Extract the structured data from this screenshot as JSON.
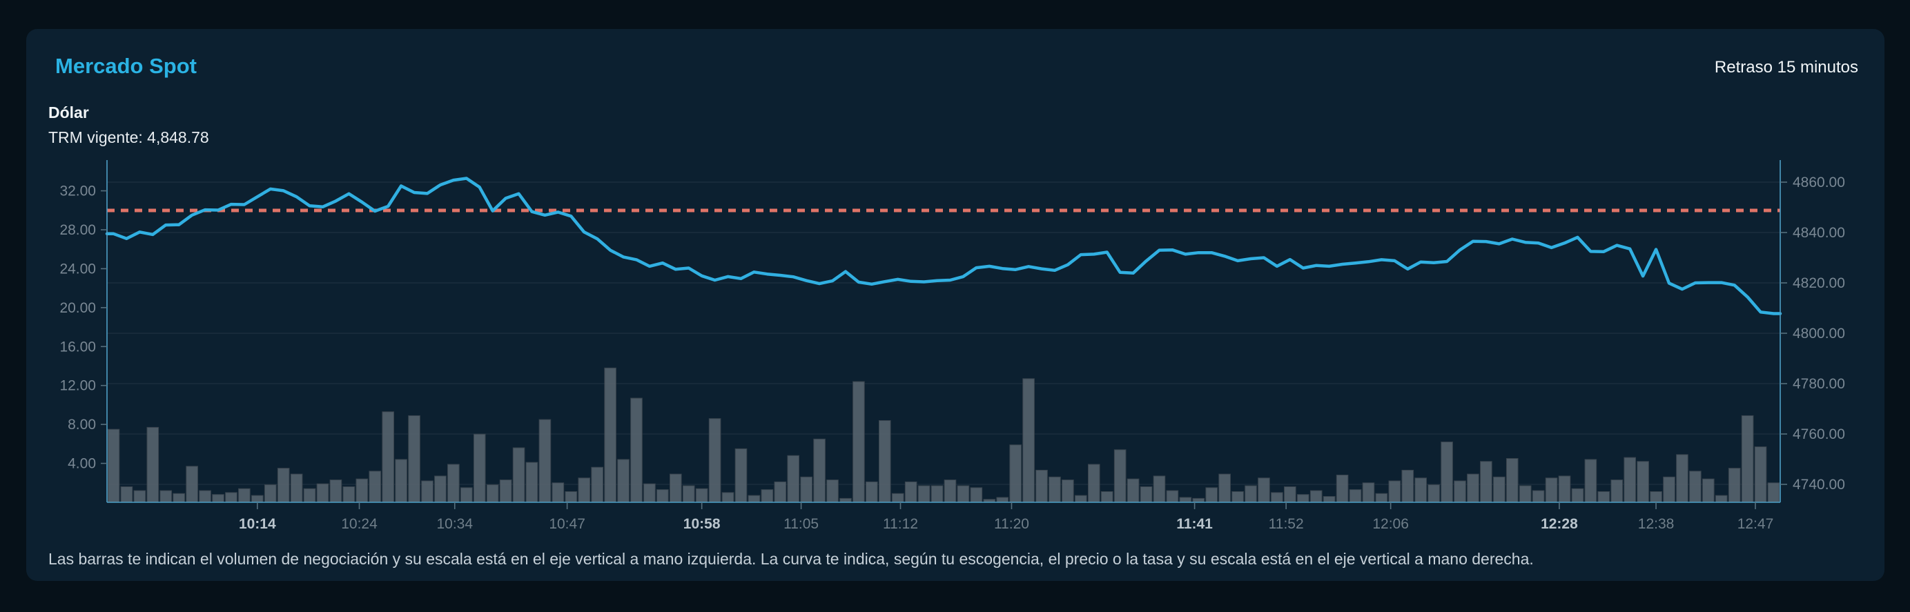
{
  "header": {
    "title": "Mercado Spot",
    "delay_note": "Retraso 15 minutos",
    "instrument": "Dólar",
    "trm_label": "TRM vigente: 4,848.78"
  },
  "footer": {
    "note": "Las barras te indican el volumen de negociación y su escala está en el eje vertical a mano izquierda. La curva te indica, según tu escogencia, el precio o la tasa y su escala está en el eje vertical a mano derecha."
  },
  "colors": {
    "page_bg": "#061119",
    "card_bg": "#0c2030",
    "accent_title": "#2bb3e4",
    "line": "#31b0e2",
    "trm_dotted": "#e07468",
    "bars_fill": "#55626d",
    "bars_stroke": "#39444e",
    "axis_line": "#4d9fc7",
    "gridline": "#1b2e3d"
  },
  "chart_data": {
    "type": "line",
    "subtype": "composite line+bar, dual y-axis",
    "title": "Mercado Spot - Dólar",
    "trm_reference": 4848.78,
    "left_axis": {
      "role": "volumen (barras)",
      "tick_values": [
        4,
        8,
        12,
        16,
        20,
        24,
        28,
        32
      ],
      "tick_labels": [
        "4.00",
        "8.00",
        "12.00",
        "16.00",
        "20.00",
        "24.00",
        "28.00",
        "32.00"
      ],
      "range": [
        0,
        35
      ]
    },
    "right_axis": {
      "role": "precio / tasa (curva)",
      "tick_values": [
        4740,
        4760,
        4780,
        4800,
        4820,
        4840,
        4860
      ],
      "tick_labels": [
        "4740.00",
        "4760.00",
        "4780.00",
        "4800.00",
        "4820.00",
        "4840.00",
        "4860.00"
      ],
      "range": [
        4733,
        4868
      ]
    },
    "x_ticks": [
      {
        "label": "10:14",
        "i": 11.0,
        "bold": true
      },
      {
        "label": "10:24",
        "i": 18.8,
        "bold": false
      },
      {
        "label": "10:34",
        "i": 26.1,
        "bold": false
      },
      {
        "label": "10:47",
        "i": 34.7,
        "bold": false
      },
      {
        "label": "10:58",
        "i": 45.0,
        "bold": true
      },
      {
        "label": "11:05",
        "i": 52.6,
        "bold": false
      },
      {
        "label": "11:12",
        "i": 60.2,
        "bold": false
      },
      {
        "label": "11:20",
        "i": 68.7,
        "bold": false
      },
      {
        "label": "11:41",
        "i": 82.7,
        "bold": true
      },
      {
        "label": "11:52",
        "i": 89.7,
        "bold": false
      },
      {
        "label": "12:06",
        "i": 97.7,
        "bold": false
      },
      {
        "label": "12:28",
        "i": 110.6,
        "bold": true
      },
      {
        "label": "12:38",
        "i": 118.0,
        "bold": false
      },
      {
        "label": "12:47",
        "i": 125.6,
        "bold": false
      }
    ],
    "series": [
      {
        "name": "precio",
        "type": "line",
        "values": [
          4839.5,
          4837.6,
          4840.2,
          4839.2,
          4843.0,
          4843.1,
          4846.9,
          4849.0,
          4848.9,
          4851.2,
          4851.1,
          4854.2,
          4857.3,
          4856.6,
          4854.2,
          4850.6,
          4850.2,
          4852.5,
          4855.4,
          4852.1,
          4848.5,
          4850.4,
          4858.5,
          4855.9,
          4855.5,
          4858.9,
          4860.8,
          4861.5,
          4858.0,
          4848.6,
          4853.6,
          4855.4,
          4848.3,
          4846.9,
          4848.1,
          4846.5,
          4840.2,
          4837.5,
          4833.0,
          4830.3,
          4829.2,
          4826.6,
          4827.9,
          4825.4,
          4825.9,
          4822.8,
          4821.1,
          4822.5,
          4821.7,
          4824.3,
          4823.5,
          4823.0,
          4822.4,
          4820.9,
          4819.7,
          4820.8,
          4824.5,
          4820.3,
          4819.5,
          4820.5,
          4821.4,
          4820.6,
          4820.4,
          4820.9,
          4821.1,
          4822.5,
          4826.0,
          4826.6,
          4825.7,
          4825.3,
          4826.5,
          4825.6,
          4825.0,
          4827.2,
          4831.2,
          4831.4,
          4832.2,
          4824.2,
          4823.9,
          4828.7,
          4833.0,
          4833.1,
          4831.4,
          4832.0,
          4832.0,
          4830.6,
          4828.8,
          4829.6,
          4830.0,
          4826.6,
          4829.3,
          4825.9,
          4826.9,
          4826.6,
          4827.4,
          4827.9,
          4828.4,
          4829.2,
          4828.8,
          4825.5,
          4828.3,
          4828.0,
          4828.5,
          4833.1,
          4836.5,
          4836.4,
          4835.5,
          4837.4,
          4836.1,
          4835.8,
          4834.0,
          4835.8,
          4838.1,
          4832.5,
          4832.4,
          4834.9,
          4833.5,
          4822.7,
          4833.3,
          4819.9,
          4817.5,
          4820.0,
          4820.1,
          4820.1,
          4819.1,
          4814.4,
          4808.4,
          4807.8
        ]
      },
      {
        "name": "volumen",
        "type": "bar",
        "values": [
          7.5,
          1.6,
          1.2,
          7.7,
          1.2,
          0.9,
          3.7,
          1.2,
          0.8,
          1.0,
          1.4,
          0.7,
          1.8,
          3.5,
          2.9,
          1.4,
          1.9,
          2.3,
          1.6,
          2.4,
          3.2,
          9.3,
          4.4,
          8.9,
          2.2,
          2.7,
          3.9,
          1.5,
          7.0,
          1.8,
          2.3,
          5.6,
          4.1,
          8.5,
          2.0,
          1.1,
          2.5,
          3.6,
          13.8,
          4.4,
          10.7,
          1.9,
          1.3,
          2.9,
          1.7,
          1.4,
          8.6,
          1.0,
          5.5,
          0.7,
          1.3,
          2.1,
          4.8,
          2.6,
          6.5,
          2.3,
          0.4,
          12.4,
          2.1,
          8.4,
          0.9,
          2.1,
          1.7,
          1.7,
          2.3,
          1.7,
          1.5,
          0.3,
          0.5,
          5.9,
          12.7,
          3.3,
          2.6,
          2.3,
          0.7,
          3.9,
          1.1,
          5.4,
          2.4,
          1.6,
          2.7,
          1.2,
          0.5,
          0.4,
          1.5,
          2.9,
          1.1,
          1.7,
          2.5,
          1.0,
          1.6,
          0.8,
          1.2,
          0.6,
          2.8,
          1.3,
          2.0,
          0.9,
          2.2,
          3.3,
          2.5,
          1.8,
          6.2,
          2.2,
          2.9,
          4.2,
          2.6,
          4.5,
          1.7,
          1.2,
          2.5,
          2.7,
          1.4,
          4.4,
          1.1,
          2.3,
          4.6,
          4.2,
          1.1,
          2.6,
          4.9,
          3.2,
          2.4,
          0.7,
          3.5,
          8.9,
          5.7,
          2.0
        ]
      }
    ],
    "grid": "horizontal gridlines at right-axis ticks",
    "legend": "none"
  }
}
